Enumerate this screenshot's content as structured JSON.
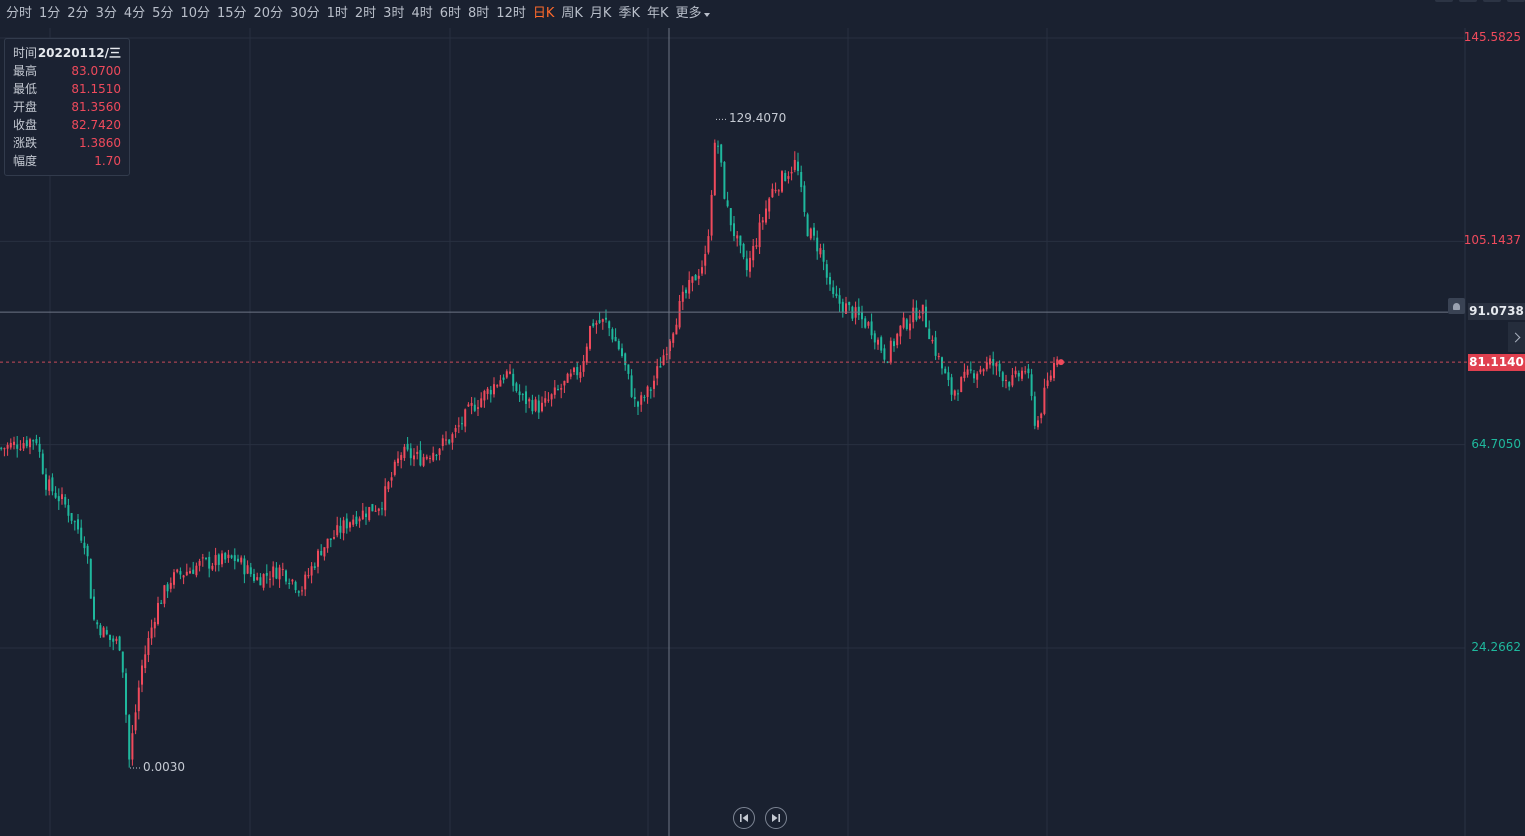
{
  "toolbar": {
    "periods": [
      "分时",
      "1分",
      "2分",
      "3分",
      "4分",
      "5分",
      "10分",
      "15分",
      "20分",
      "30分",
      "1时",
      "2时",
      "3时",
      "4时",
      "6时",
      "8时",
      "12时",
      "日K",
      "周K",
      "月K",
      "季K",
      "年K"
    ],
    "active": "日K",
    "more_label": "更多"
  },
  "info_box": {
    "rows": [
      {
        "label": "时间",
        "value": "20220112/三"
      },
      {
        "label": "最高",
        "value": "83.0700"
      },
      {
        "label": "最低",
        "value": "81.1510"
      },
      {
        "label": "开盘",
        "value": "81.3560"
      },
      {
        "label": "收盘",
        "value": "82.7420"
      },
      {
        "label": "涨跌",
        "value": "1.3860"
      },
      {
        "label": "幅度",
        "value": "1.70"
      }
    ]
  },
  "y_axis": {
    "ticks": [
      {
        "label": "145.5825",
        "value": 145.5825,
        "dir": "up"
      },
      {
        "label": "105.1437",
        "value": 105.1437,
        "dir": "up"
      },
      {
        "label": "64.7050",
        "value": 64.705,
        "dir": "down"
      },
      {
        "label": "24.2662",
        "value": 24.2662,
        "dir": "down"
      }
    ],
    "crosshair_label": "91.0738",
    "crosshair_value": 91.0738,
    "last_price_label": "81.1140",
    "last_price_value": 81.114
  },
  "markers": {
    "max_label": "129.4070",
    "max_value": 129.407,
    "min_label": "0.0030",
    "min_value": 0.003
  },
  "chart_data": {
    "type": "candlestick",
    "ylim": [
      0.003,
      145.5825
    ],
    "up_color": "#ef4a5c",
    "down_color": "#1fb89d",
    "close_path": [
      [
        0,
        64
      ],
      [
        0.035,
        66
      ],
      [
        0.045,
        57
      ],
      [
        0.063,
        53
      ],
      [
        0.085,
        45
      ],
      [
        0.092,
        30
      ],
      [
        0.108,
        26
      ],
      [
        0.12,
        25
      ],
      [
        0.128,
        2
      ],
      [
        0.14,
        20
      ],
      [
        0.155,
        32
      ],
      [
        0.17,
        38
      ],
      [
        0.2,
        41
      ],
      [
        0.235,
        42
      ],
      [
        0.245,
        40
      ],
      [
        0.255,
        38
      ],
      [
        0.28,
        40
      ],
      [
        0.3,
        36
      ],
      [
        0.32,
        44
      ],
      [
        0.35,
        50
      ],
      [
        0.38,
        53
      ],
      [
        0.4,
        63
      ],
      [
        0.42,
        62
      ],
      [
        0.45,
        66
      ],
      [
        0.47,
        72
      ],
      [
        0.505,
        79
      ],
      [
        0.52,
        74
      ],
      [
        0.54,
        72
      ],
      [
        0.56,
        76
      ],
      [
        0.58,
        80
      ],
      [
        0.59,
        89
      ],
      [
        0.605,
        89
      ],
      [
        0.62,
        83
      ],
      [
        0.635,
        72
      ],
      [
        0.65,
        76
      ],
      [
        0.665,
        84
      ],
      [
        0.68,
        93
      ],
      [
        0.705,
        102
      ],
      [
        0.715,
        127
      ],
      [
        0.725,
        112
      ],
      [
        0.745,
        99
      ],
      [
        0.77,
        115
      ],
      [
        0.795,
        121
      ],
      [
        0.805,
        108
      ],
      [
        0.82,
        103
      ],
      [
        0.83,
        94
      ],
      [
        0.845,
        92
      ],
      [
        0.87,
        88
      ],
      [
        0.885,
        82
      ],
      [
        0.9,
        88
      ],
      [
        0.92,
        92
      ],
      [
        0.935,
        83
      ],
      [
        0.95,
        75
      ],
      [
        0.97,
        79
      ],
      [
        0.99,
        81
      ],
      [
        1.01,
        77
      ],
      [
        1.025,
        80
      ],
      [
        1.035,
        68
      ],
      [
        1.045,
        76
      ],
      [
        1.058,
        84
      ]
    ]
  }
}
